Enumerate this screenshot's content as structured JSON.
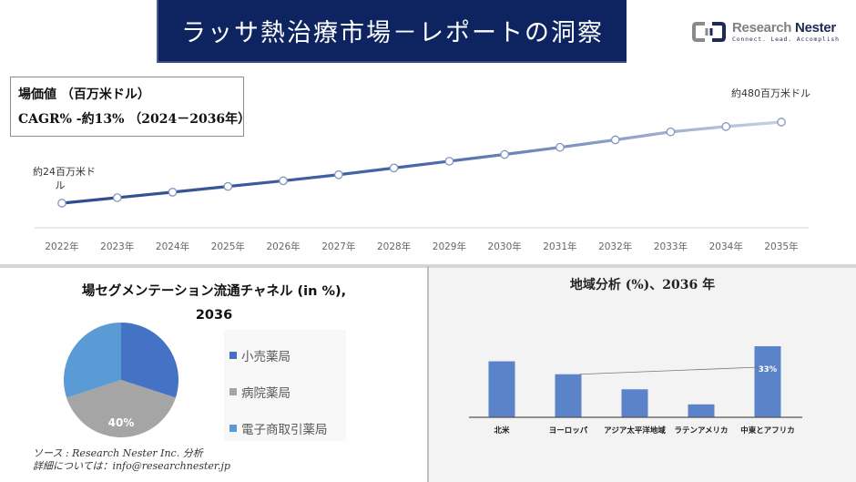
{
  "header": {
    "title": "ラッサ熱治療市場－レポートの洞察",
    "logo": {
      "name_part1": "Research",
      "name_part2": "Nester",
      "tagline": "Connect. Lead. Accomplish"
    }
  },
  "info_box": {
    "line1": "場価値 （百万米ドル）",
    "line2": "CAGR% -約13% （2024－2036年）"
  },
  "colors": {
    "banner": "#0d2460",
    "line_start": "#2e4a8c",
    "line_end": "#c8d0e4",
    "pie_retail": "#4472c4",
    "pie_hospital": "#a5a5a5",
    "pie_ecommerce": "#5b9bd5",
    "bar": "#5b83c9",
    "bar_panel_bg": "#f3f3f3"
  },
  "pie_section": {
    "title_line1": "場セグメンテーション流通チャネル (in %),",
    "title_line2": "2036",
    "legend": [
      {
        "label": "小売薬局",
        "color": "#4472c4"
      },
      {
        "label": "病院薬局",
        "color": "#a5a5a5"
      },
      {
        "label": "電子商取引薬局",
        "color": "#5b9bd5"
      }
    ],
    "data_label": "40%"
  },
  "bar_section": {
    "title": "地域分析 (%)、2036 年",
    "data_label": "33%"
  },
  "source": {
    "line1": "ソース : Research Nester Inc. 分析",
    "line2": "詳細については：info@researchnester.jp"
  },
  "chart_data": [
    {
      "type": "line",
      "title": "場価値 （百万米ドル）",
      "subtitle": "CAGR% -約13% （2024－2036年）",
      "categories": [
        "2022年",
        "2023年",
        "2024年",
        "2025年",
        "2026年",
        "2027年",
        "2028年",
        "2029年",
        "2030年",
        "2031年",
        "2032年",
        "2033年",
        "2034年",
        "2035年"
      ],
      "values": [
        24,
        55,
        86,
        118,
        150,
        184,
        222,
        260,
        298,
        338,
        380,
        425,
        455,
        480
      ],
      "values_note": "Only the 2022 (~24) and 2035 (~480) endpoints are labeled; intermediate values are interpolated from the plotted path. The displayed CAGR (~13%) is inconsistent with 24→480 over 13 years (~26%).",
      "annotations": [
        {
          "x": "2022年",
          "text": "約24百万米ドル"
        },
        {
          "x": "2035年",
          "text": "約480百万米ドル"
        }
      ],
      "xlabel": "",
      "ylabel": "",
      "grid": false,
      "legend": "none"
    },
    {
      "type": "pie",
      "title": "場セグメンテーション流通チャネル (in %), 2036",
      "categories": [
        "小売薬局",
        "病院薬局",
        "電子商取引薬局"
      ],
      "values": [
        30,
        40,
        30
      ],
      "values_note": "Only the 40% slice is labeled; the other two slices are visually estimated.",
      "data_labels": {
        "病院薬局": "40%"
      },
      "legend": "right"
    },
    {
      "type": "bar",
      "title": "地域分析 (%)、2036 年",
      "categories": [
        "北米",
        "ヨーロッパ",
        "アジア太平洋地域",
        "ラテンアメリカ",
        "中東とアフリカ"
      ],
      "values": [
        26,
        20,
        13,
        6,
        33
      ],
      "values_note": "Only 中東とアフリカ (33%) is labeled; the others are estimated from bar heights relative to it.",
      "data_labels": {
        "中東とアフリカ": "33%"
      },
      "grid": false,
      "legend": "none"
    }
  ]
}
